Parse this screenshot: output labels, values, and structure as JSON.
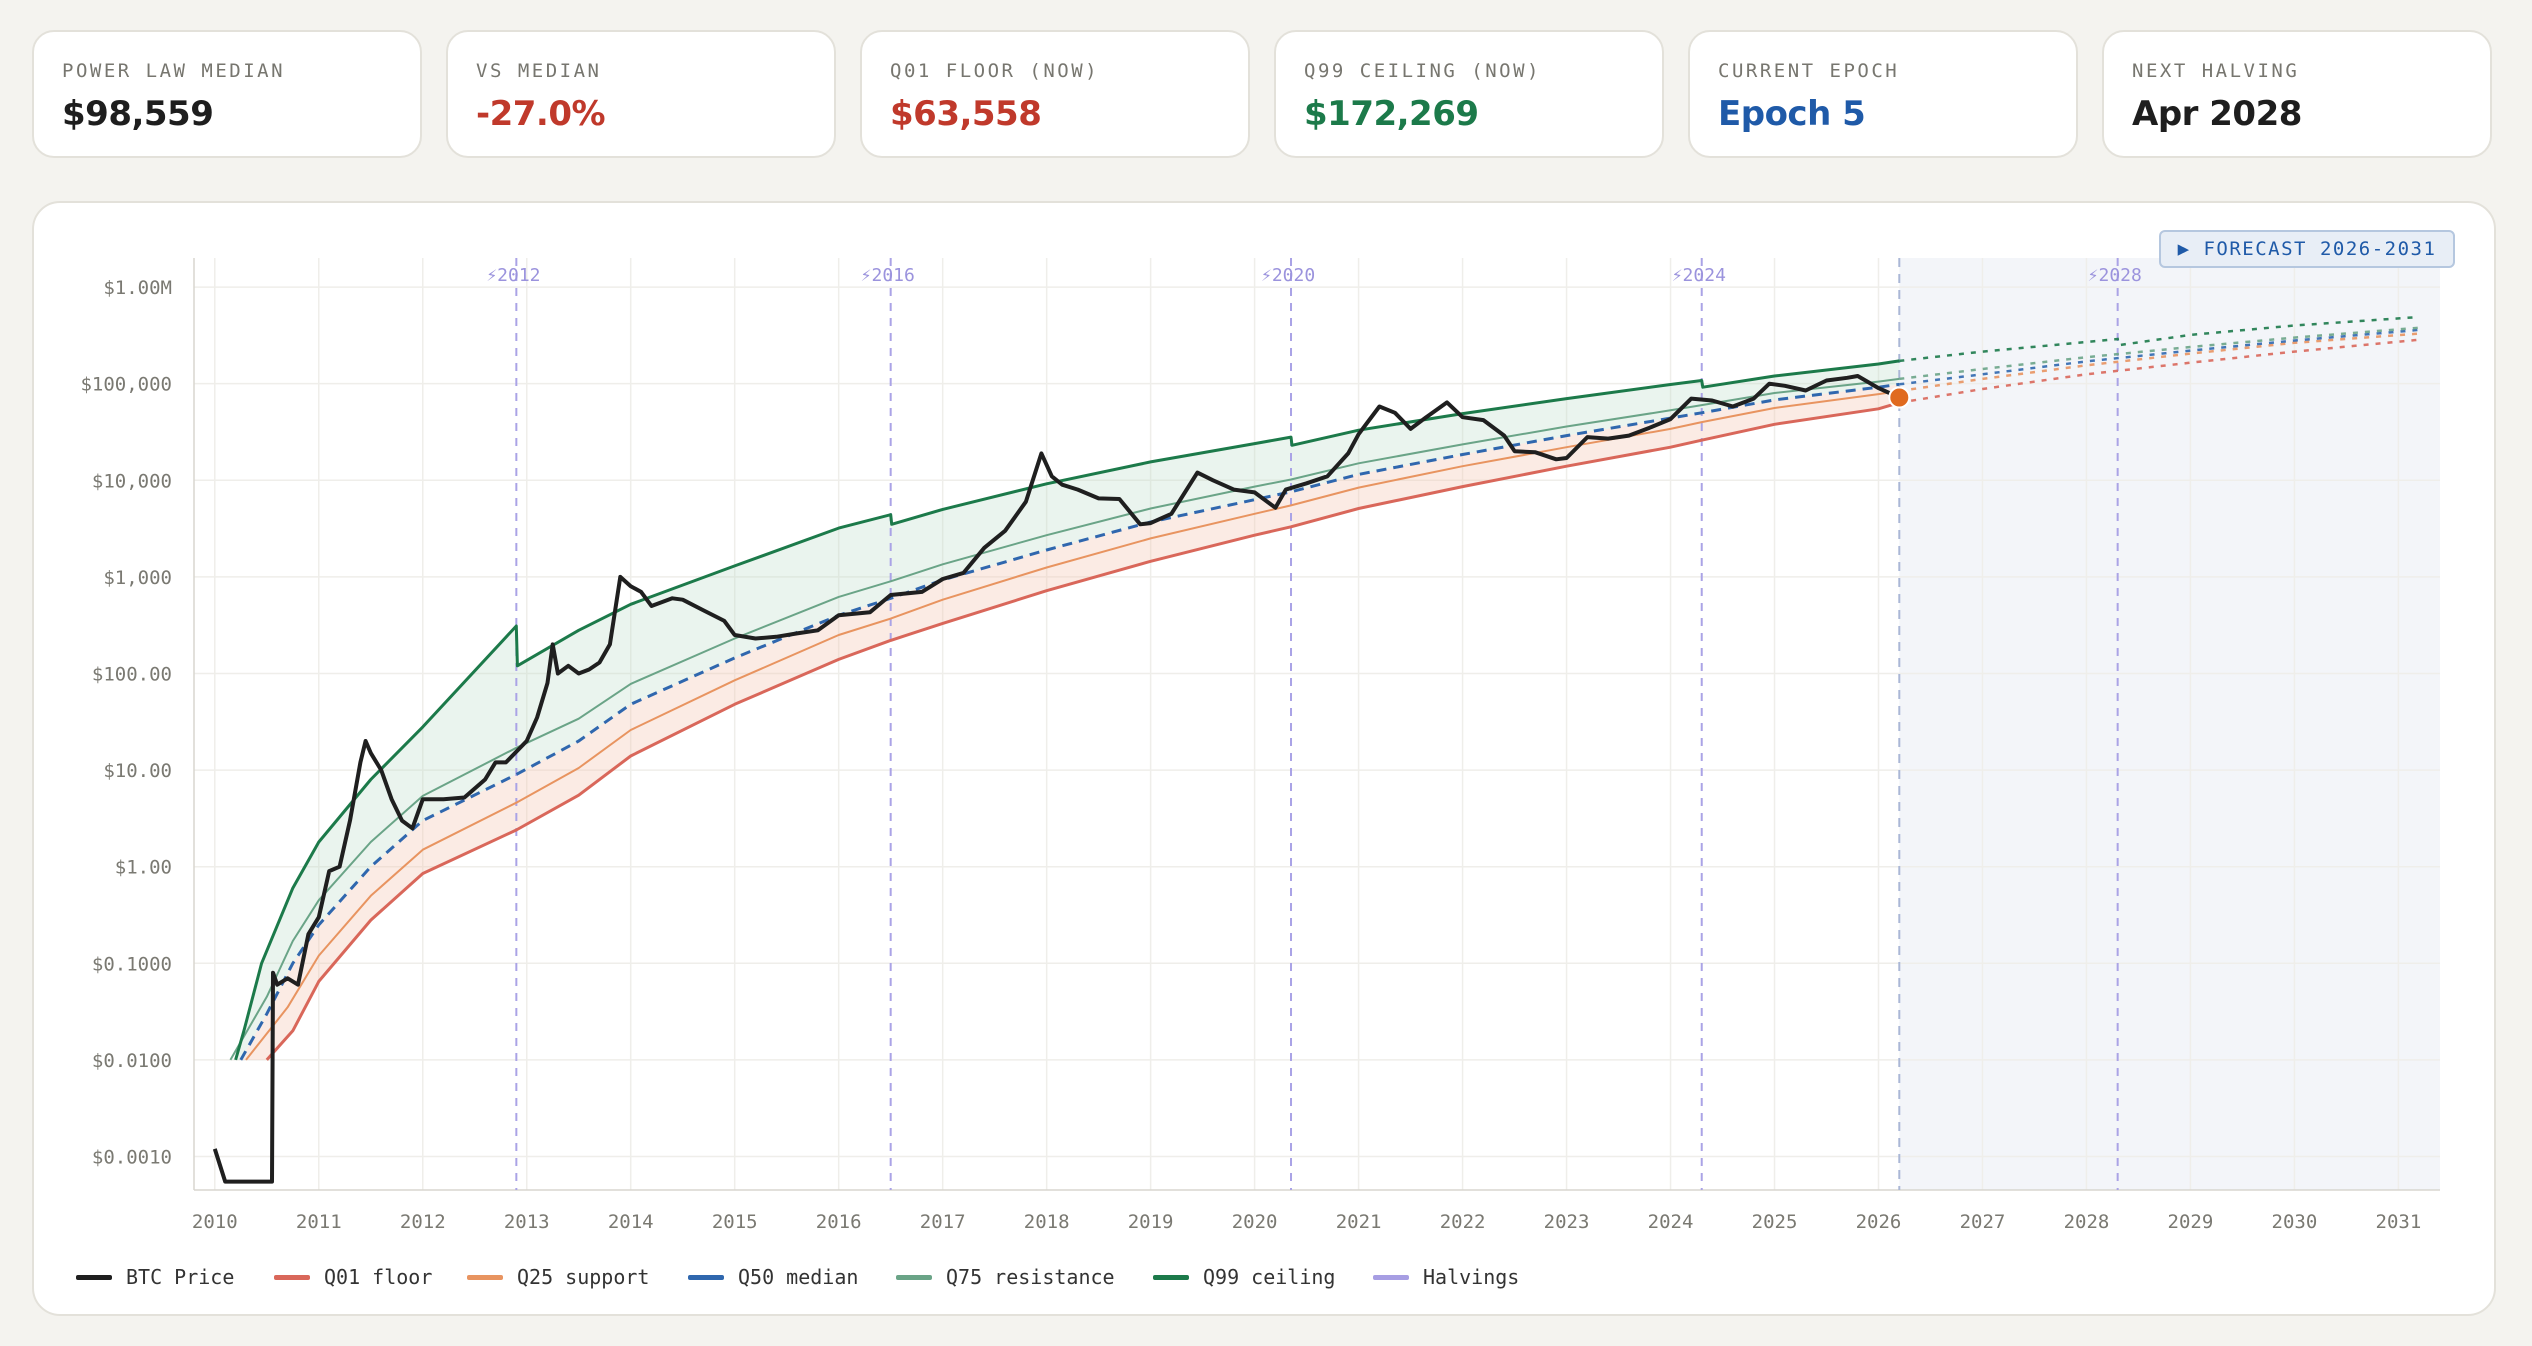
{
  "stats": [
    {
      "label": "POWER LAW MEDIAN",
      "value": "$98,559",
      "color": "#1e1e1e"
    },
    {
      "label": "VS MEDIAN",
      "value": "-27.0%",
      "color": "#c0392b"
    },
    {
      "label": "Q01 FLOOR (NOW)",
      "value": "$63,558",
      "color": "#c0392b"
    },
    {
      "label": "Q99 CEILING (NOW)",
      "value": "$172,269",
      "color": "#1c7a4a"
    },
    {
      "label": "CURRENT EPOCH",
      "value": "Epoch 5",
      "color": "#1f5aa8"
    },
    {
      "label": "NEXT HALVING",
      "value": "Apr 2028",
      "color": "#1e1e1e"
    }
  ],
  "forecast_button": "▶ FORECAST 2026-2031",
  "legend": [
    {
      "label": "BTC Price",
      "color": "#1f1f1f"
    },
    {
      "label": "Q01 floor",
      "color": "#d9675a"
    },
    {
      "label": "Q25 support",
      "color": "#e89460"
    },
    {
      "label": "Q50 median",
      "color": "#2f67ae"
    },
    {
      "label": "Q75 resistance",
      "color": "#6aa487"
    },
    {
      "label": "Q99 ceiling",
      "color": "#1c7a4a"
    },
    {
      "label": "Halvings",
      "color": "#a79ee3"
    }
  ],
  "chart_data": {
    "type": "line",
    "y_scale": "log",
    "xlim": [
      2009.8,
      2031.4
    ],
    "ylim": [
      0.00045,
      2000000
    ],
    "grid": true,
    "current_date": 2026.2,
    "current_price": 72000,
    "y_ticks": [
      {
        "value": 0.001,
        "label": "$0.0010"
      },
      {
        "value": 0.01,
        "label": "$0.0100"
      },
      {
        "value": 0.1,
        "label": "$0.1000"
      },
      {
        "value": 1,
        "label": "$1.00"
      },
      {
        "value": 10,
        "label": "$10.00"
      },
      {
        "value": 100,
        "label": "$100.00"
      },
      {
        "value": 1000,
        "label": "$1,000"
      },
      {
        "value": 10000,
        "label": "$10,000"
      },
      {
        "value": 100000,
        "label": "$100,000"
      },
      {
        "value": 1000000,
        "label": "$1.00M"
      }
    ],
    "x_ticks": [
      {
        "value": 2010,
        "label": "2010"
      },
      {
        "value": 2011,
        "label": "2011"
      },
      {
        "value": 2012,
        "label": "2012"
      },
      {
        "value": 2013,
        "label": "2013"
      },
      {
        "value": 2014,
        "label": "2014"
      },
      {
        "value": 2015,
        "label": "2015"
      },
      {
        "value": 2016,
        "label": "2016"
      },
      {
        "value": 2017,
        "label": "2017"
      },
      {
        "value": 2018,
        "label": "2018"
      },
      {
        "value": 2019,
        "label": "2019"
      },
      {
        "value": 2020,
        "label": "2020"
      },
      {
        "value": 2021,
        "label": "2021"
      },
      {
        "value": 2022,
        "label": "2022"
      },
      {
        "value": 2023,
        "label": "2023"
      },
      {
        "value": 2024,
        "label": "2024"
      },
      {
        "value": 2025,
        "label": "2025"
      },
      {
        "value": 2026,
        "label": "2026"
      },
      {
        "value": 2027,
        "label": "2027"
      },
      {
        "value": 2028,
        "label": "2028"
      },
      {
        "value": 2029,
        "label": "2029"
      },
      {
        "value": 2030,
        "label": "2030"
      },
      {
        "value": 2031,
        "label": "2031"
      }
    ],
    "halvings": [
      {
        "x": 2012.9,
        "label": "⚡2012"
      },
      {
        "x": 2016.5,
        "label": "⚡2016"
      },
      {
        "x": 2020.35,
        "label": "⚡2020"
      },
      {
        "x": 2024.3,
        "label": "⚡2024"
      },
      {
        "x": 2028.3,
        "label": "⚡2028"
      }
    ],
    "bands": [
      {
        "name": "Q01 floor",
        "color": "#d9675a",
        "points": [
          [
            2010.5,
            0.01
          ],
          [
            2010.75,
            0.02
          ],
          [
            2011,
            0.065
          ],
          [
            2011.5,
            0.28
          ],
          [
            2012,
            0.85
          ],
          [
            2012.9,
            2.4
          ],
          [
            2013.5,
            5.5
          ],
          [
            2014,
            14
          ],
          [
            2015,
            48
          ],
          [
            2016,
            140
          ],
          [
            2016.5,
            220
          ],
          [
            2017,
            330
          ],
          [
            2018,
            720
          ],
          [
            2019,
            1450
          ],
          [
            2020,
            2700
          ],
          [
            2020.35,
            3300
          ],
          [
            2021,
            5100
          ],
          [
            2022,
            8600
          ],
          [
            2023,
            14000
          ],
          [
            2024,
            22000
          ],
          [
            2024.3,
            26000
          ],
          [
            2025,
            38000
          ],
          [
            2026,
            55000
          ],
          [
            2026.2,
            63558
          ]
        ],
        "forecast": [
          [
            2026.2,
            63558
          ],
          [
            2027,
            88000
          ],
          [
            2028,
            125000
          ],
          [
            2029,
            165000
          ],
          [
            2030,
            215000
          ],
          [
            2031.2,
            285000
          ]
        ]
      },
      {
        "name": "Q25 support",
        "color": "#e89460",
        "points": [
          [
            2010.3,
            0.01
          ],
          [
            2010.7,
            0.035
          ],
          [
            2011,
            0.12
          ],
          [
            2011.5,
            0.5
          ],
          [
            2012,
            1.5
          ],
          [
            2012.9,
            4.6
          ],
          [
            2013.5,
            10.5
          ],
          [
            2014,
            26
          ],
          [
            2015,
            85
          ],
          [
            2016,
            250
          ],
          [
            2016.5,
            370
          ],
          [
            2017,
            580
          ],
          [
            2018,
            1250
          ],
          [
            2019,
            2500
          ],
          [
            2020,
            4500
          ],
          [
            2020.35,
            5500
          ],
          [
            2021,
            8400
          ],
          [
            2022,
            14000
          ],
          [
            2023,
            22000
          ],
          [
            2024,
            34000
          ],
          [
            2024.3,
            40000
          ],
          [
            2025,
            56000
          ],
          [
            2026,
            78000
          ],
          [
            2026.2,
            84000
          ]
        ],
        "forecast": [
          [
            2026.2,
            84000
          ],
          [
            2027,
            112000
          ],
          [
            2028,
            155000
          ],
          [
            2029,
            205000
          ],
          [
            2030,
            265000
          ],
          [
            2031.2,
            330000
          ]
        ]
      },
      {
        "name": "Q50 median",
        "color": "#2f67ae",
        "points": [
          [
            2010.25,
            0.01
          ],
          [
            2010.5,
            0.03
          ],
          [
            2010.75,
            0.1
          ],
          [
            2011,
            0.25
          ],
          [
            2011.5,
            1.0
          ],
          [
            2012,
            3.0
          ],
          [
            2012.9,
            9
          ],
          [
            2013.5,
            20
          ],
          [
            2014,
            48
          ],
          [
            2015,
            145
          ],
          [
            2016,
            400
          ],
          [
            2016.5,
            600
          ],
          [
            2017,
            930
          ],
          [
            2018,
            1900
          ],
          [
            2019,
            3700
          ],
          [
            2020,
            6300
          ],
          [
            2020.35,
            7600
          ],
          [
            2021,
            11500
          ],
          [
            2022,
            18500
          ],
          [
            2023,
            29000
          ],
          [
            2024,
            44000
          ],
          [
            2024.3,
            50000
          ],
          [
            2025,
            68000
          ],
          [
            2026,
            92000
          ],
          [
            2026.2,
            98559
          ]
        ],
        "forecast": [
          [
            2026.2,
            98559
          ],
          [
            2027,
            125000
          ],
          [
            2028,
            170000
          ],
          [
            2029,
            220000
          ],
          [
            2030,
            280000
          ],
          [
            2031.2,
            360000
          ]
        ]
      },
      {
        "name": "Q75 resistance",
        "color": "#6aa487",
        "points": [
          [
            2010.15,
            0.01
          ],
          [
            2010.5,
            0.045
          ],
          [
            2010.75,
            0.17
          ],
          [
            2011,
            0.45
          ],
          [
            2011.5,
            1.8
          ],
          [
            2012,
            5.4
          ],
          [
            2012.9,
            17
          ],
          [
            2013.5,
            34
          ],
          [
            2014,
            78
          ],
          [
            2015,
            230
          ],
          [
            2016,
            620
          ],
          [
            2016.5,
            900
          ],
          [
            2017,
            1350
          ],
          [
            2018,
            2700
          ],
          [
            2019,
            5100
          ],
          [
            2020,
            8600
          ],
          [
            2020.35,
            10200
          ],
          [
            2021,
            15000
          ],
          [
            2022,
            23500
          ],
          [
            2023,
            36000
          ],
          [
            2024,
            53000
          ],
          [
            2024.3,
            60000
          ],
          [
            2025,
            80000
          ],
          [
            2026,
            105000
          ],
          [
            2026.2,
            112000
          ]
        ],
        "forecast": [
          [
            2026.2,
            112000
          ],
          [
            2027,
            142000
          ],
          [
            2028,
            188000
          ],
          [
            2029,
            240000
          ],
          [
            2030,
            300000
          ],
          [
            2031.2,
            380000
          ]
        ]
      },
      {
        "name": "Q99 ceiling",
        "color": "#1c7a4a",
        "points": [
          [
            2010.2,
            0.01
          ],
          [
            2010.28,
            0.02
          ],
          [
            2010.45,
            0.1
          ],
          [
            2010.75,
            0.6
          ],
          [
            2011,
            1.8
          ],
          [
            2011.5,
            8
          ],
          [
            2012,
            28
          ],
          [
            2012.9,
            310
          ],
          [
            2012.91,
            120
          ],
          [
            2013.5,
            280
          ],
          [
            2014,
            520
          ],
          [
            2015,
            1300
          ],
          [
            2016,
            3200
          ],
          [
            2016.5,
            4400
          ],
          [
            2016.51,
            3500
          ],
          [
            2017,
            5000
          ],
          [
            2018,
            9200
          ],
          [
            2019,
            15500
          ],
          [
            2020,
            24000
          ],
          [
            2020.35,
            28000
          ],
          [
            2020.36,
            23000
          ],
          [
            2021,
            33000
          ],
          [
            2022,
            49000
          ],
          [
            2023,
            70000
          ],
          [
            2024,
            98000
          ],
          [
            2024.3,
            108000
          ],
          [
            2024.31,
            92000
          ],
          [
            2025,
            120000
          ],
          [
            2026,
            160000
          ],
          [
            2026.2,
            172269
          ]
        ],
        "forecast": [
          [
            2026.2,
            172269
          ],
          [
            2027,
            215000
          ],
          [
            2028,
            270000
          ],
          [
            2028.3,
            290000
          ],
          [
            2028.31,
            250000
          ],
          [
            2029,
            320000
          ],
          [
            2030,
            400000
          ],
          [
            2031.2,
            490000
          ]
        ]
      }
    ],
    "btc_price": [
      [
        2010.0,
        0.0012
      ],
      [
        2010.1,
        0.00055
      ],
      [
        2010.2,
        0.00055
      ],
      [
        2010.55,
        0.00055
      ],
      [
        2010.56,
        0.08
      ],
      [
        2010.6,
        0.06
      ],
      [
        2010.7,
        0.07
      ],
      [
        2010.8,
        0.06
      ],
      [
        2010.9,
        0.2
      ],
      [
        2011,
        0.3
      ],
      [
        2011.1,
        0.9
      ],
      [
        2011.2,
        1.0
      ],
      [
        2011.3,
        3
      ],
      [
        2011.4,
        12
      ],
      [
        2011.45,
        20
      ],
      [
        2011.5,
        15
      ],
      [
        2011.6,
        10
      ],
      [
        2011.7,
        5
      ],
      [
        2011.8,
        3
      ],
      [
        2011.9,
        2.5
      ],
      [
        2012,
        5
      ],
      [
        2012.2,
        5
      ],
      [
        2012.4,
        5.2
      ],
      [
        2012.6,
        8
      ],
      [
        2012.7,
        12
      ],
      [
        2012.8,
        12
      ],
      [
        2013,
        20
      ],
      [
        2013.1,
        35
      ],
      [
        2013.2,
        80
      ],
      [
        2013.25,
        200
      ],
      [
        2013.3,
        100
      ],
      [
        2013.4,
        120
      ],
      [
        2013.5,
        100
      ],
      [
        2013.6,
        110
      ],
      [
        2013.7,
        130
      ],
      [
        2013.8,
        200
      ],
      [
        2013.9,
        1000
      ],
      [
        2014,
        800
      ],
      [
        2014.1,
        700
      ],
      [
        2014.2,
        500
      ],
      [
        2014.4,
        600
      ],
      [
        2014.5,
        580
      ],
      [
        2014.7,
        450
      ],
      [
        2014.9,
        350
      ],
      [
        2015,
        250
      ],
      [
        2015.2,
        230
      ],
      [
        2015.4,
        240
      ],
      [
        2015.6,
        260
      ],
      [
        2015.8,
        280
      ],
      [
        2016,
        400
      ],
      [
        2016.3,
        430
      ],
      [
        2016.5,
        650
      ],
      [
        2016.8,
        700
      ],
      [
        2017,
        950
      ],
      [
        2017.2,
        1100
      ],
      [
        2017.4,
        2000
      ],
      [
        2017.6,
        3000
      ],
      [
        2017.8,
        6000
      ],
      [
        2017.95,
        19000
      ],
      [
        2018.05,
        11000
      ],
      [
        2018.15,
        9000
      ],
      [
        2018.3,
        8000
      ],
      [
        2018.5,
        6500
      ],
      [
        2018.7,
        6400
      ],
      [
        2018.9,
        3500
      ],
      [
        2019,
        3600
      ],
      [
        2019.2,
        4500
      ],
      [
        2019.45,
        12000
      ],
      [
        2019.6,
        10000
      ],
      [
        2019.8,
        8000
      ],
      [
        2020,
        7500
      ],
      [
        2020.2,
        5200
      ],
      [
        2020.3,
        8000
      ],
      [
        2020.5,
        9300
      ],
      [
        2020.7,
        11000
      ],
      [
        2020.9,
        19000
      ],
      [
        2021,
        30000
      ],
      [
        2021.2,
        58000
      ],
      [
        2021.35,
        50000
      ],
      [
        2021.5,
        34000
      ],
      [
        2021.65,
        45000
      ],
      [
        2021.85,
        64000
      ],
      [
        2022,
        45000
      ],
      [
        2022.2,
        42000
      ],
      [
        2022.4,
        29000
      ],
      [
        2022.5,
        20000
      ],
      [
        2022.7,
        19500
      ],
      [
        2022.9,
        16500
      ],
      [
        2023,
        17000
      ],
      [
        2023.2,
        28000
      ],
      [
        2023.4,
        27000
      ],
      [
        2023.6,
        29000
      ],
      [
        2023.8,
        35000
      ],
      [
        2024,
        43000
      ],
      [
        2024.2,
        70000
      ],
      [
        2024.4,
        67000
      ],
      [
        2024.6,
        58000
      ],
      [
        2024.8,
        70000
      ],
      [
        2024.95,
        100000
      ],
      [
        2025.1,
        95000
      ],
      [
        2025.3,
        85000
      ],
      [
        2025.5,
        108000
      ],
      [
        2025.7,
        115000
      ],
      [
        2025.8,
        120000
      ],
      [
        2026,
        90000
      ],
      [
        2026.2,
        72000
      ]
    ]
  }
}
